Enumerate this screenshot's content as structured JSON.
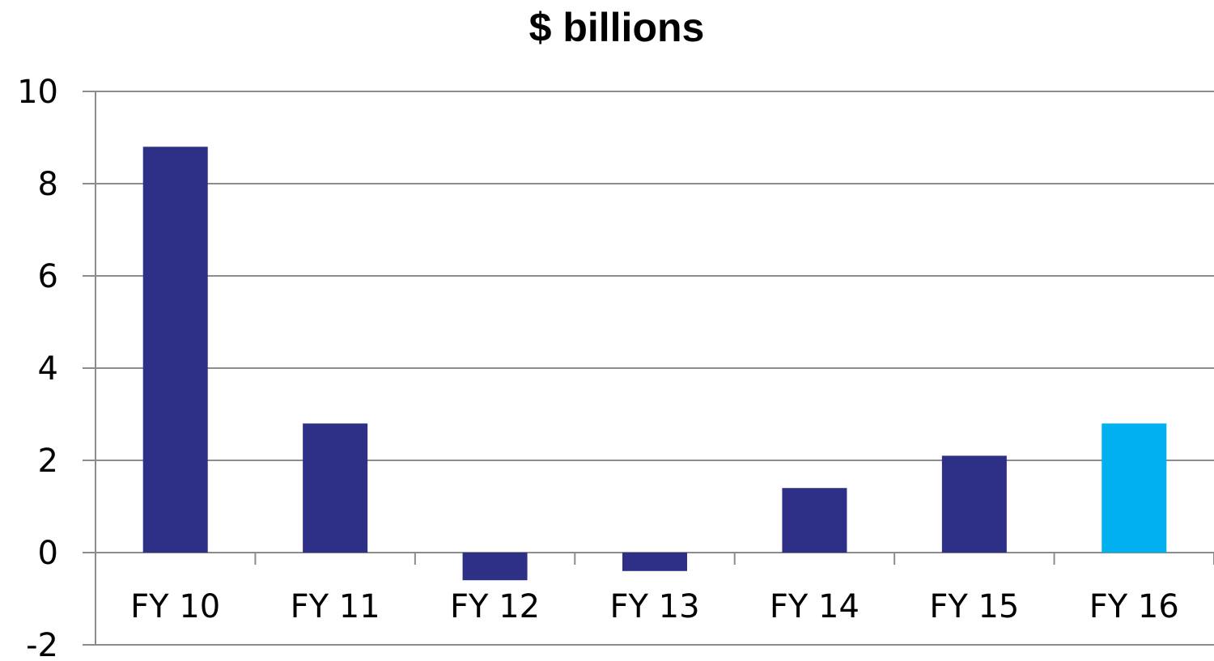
{
  "chart_data": {
    "type": "bar",
    "title": "$ billions",
    "xlabel": "",
    "ylabel": "",
    "categories": [
      "FY 10",
      "FY 11",
      "FY 12",
      "FY 13",
      "FY 14",
      "FY 15",
      "FY 16"
    ],
    "values": [
      8.8,
      2.8,
      -0.6,
      -0.4,
      1.4,
      2.1,
      2.8
    ],
    "bar_colors": [
      "#2E3087",
      "#2E3087",
      "#2E3087",
      "#2E3087",
      "#2E3087",
      "#2E3087",
      "#00B0F0"
    ],
    "ylim": [
      -2,
      10
    ],
    "yticks": [
      "-2",
      "0",
      "2",
      "4",
      "6",
      "8",
      "10"
    ],
    "grid": true,
    "legend": "none"
  },
  "colors": {
    "bar_primary": "#2E3087",
    "bar_highlight": "#00B0F0",
    "gridline": "#8C8C8C",
    "axis": "#8C8C8C"
  }
}
